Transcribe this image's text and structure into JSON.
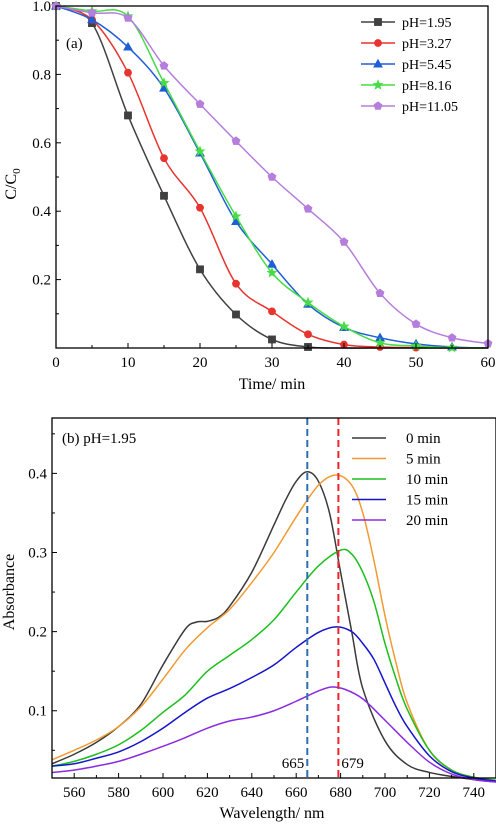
{
  "chart_data": [
    {
      "type": "line",
      "panel_label": "(a)",
      "xlabel": "Time/ min",
      "ylabel_main": "C/C",
      "ylabel_sub": "0",
      "xlim": [
        0,
        60
      ],
      "ylim": [
        0,
        1.0
      ],
      "xticks": [
        0,
        10,
        20,
        30,
        40,
        50,
        60
      ],
      "yticks": [
        0.2,
        0.4,
        0.6,
        0.8,
        1.0
      ],
      "legend_position": "top-right",
      "series": [
        {
          "name": "pH=1.95",
          "color": "#404040",
          "marker": "square",
          "points": [
            [
              0,
              1.0
            ],
            [
              5,
              0.95
            ],
            [
              10,
              0.68
            ],
            [
              15,
              0.445
            ],
            [
              20,
              0.23
            ],
            [
              25,
              0.098
            ],
            [
              30,
              0.025
            ],
            [
              35,
              0.003
            ],
            [
              40,
              0.0
            ],
            [
              45,
              0.0
            ],
            [
              50,
              0.0
            ],
            [
              55,
              0.0
            ],
            [
              60,
              0.0
            ]
          ]
        },
        {
          "name": "pH=3.27",
          "color": "#e8342e",
          "marker": "circle",
          "points": [
            [
              0,
              1.0
            ],
            [
              5,
              0.96
            ],
            [
              10,
              0.805
            ],
            [
              15,
              0.555
            ],
            [
              20,
              0.41
            ],
            [
              25,
              0.188
            ],
            [
              30,
              0.107
            ],
            [
              35,
              0.04
            ],
            [
              40,
              0.01
            ],
            [
              45,
              0.003
            ],
            [
              50,
              0.001
            ],
            [
              55,
              0.0
            ],
            [
              60,
              0.0
            ]
          ]
        },
        {
          "name": "pH=5.45",
          "color": "#1f5fd6",
          "marker": "triangle",
          "points": [
            [
              0,
              1.0
            ],
            [
              5,
              0.96
            ],
            [
              10,
              0.88
            ],
            [
              15,
              0.76
            ],
            [
              20,
              0.57
            ],
            [
              25,
              0.37
            ],
            [
              30,
              0.245
            ],
            [
              35,
              0.128
            ],
            [
              40,
              0.06
            ],
            [
              45,
              0.03
            ],
            [
              50,
              0.012
            ],
            [
              55,
              0.003
            ],
            [
              60,
              0.0
            ]
          ]
        },
        {
          "name": "pH=8.16",
          "color": "#44dd44",
          "marker": "star",
          "points": [
            [
              0,
              1.0
            ],
            [
              5,
              0.985
            ],
            [
              10,
              0.97
            ],
            [
              15,
              0.775
            ],
            [
              20,
              0.575
            ],
            [
              25,
              0.385
            ],
            [
              30,
              0.22
            ],
            [
              35,
              0.133
            ],
            [
              40,
              0.063
            ],
            [
              45,
              0.015
            ],
            [
              50,
              0.006
            ],
            [
              55,
              0.001
            ],
            [
              60,
              0.0
            ]
          ]
        },
        {
          "name": "pH=11.05",
          "color": "#b57edc",
          "marker": "pentagon",
          "points": [
            [
              0,
              1.0
            ],
            [
              5,
              0.98
            ],
            [
              10,
              0.965
            ],
            [
              15,
              0.825
            ],
            [
              20,
              0.713
            ],
            [
              25,
              0.605
            ],
            [
              30,
              0.5
            ],
            [
              35,
              0.407
            ],
            [
              40,
              0.31
            ],
            [
              45,
              0.16
            ],
            [
              50,
              0.07
            ],
            [
              55,
              0.03
            ],
            [
              60,
              0.013
            ]
          ]
        }
      ]
    },
    {
      "type": "line",
      "panel_label": "(b) pH=1.95",
      "xlabel": "Wavelength/ nm",
      "ylabel": "Absorbance",
      "xlim": [
        550,
        750
      ],
      "ylim": [
        0.015,
        0.47
      ],
      "xticks": [
        560,
        580,
        600,
        620,
        640,
        660,
        680,
        700,
        720,
        740
      ],
      "yticks": [
        0.1,
        0.2,
        0.3,
        0.4
      ],
      "legend_position": "top-right",
      "vlines": [
        {
          "x": 665,
          "label": "665",
          "color": "#2f6eb3"
        },
        {
          "x": 679,
          "label": "679",
          "color": "#e8262b"
        }
      ],
      "series": [
        {
          "name": "0 min",
          "color": "#3a3a3a",
          "points": [
            [
              550,
              0.033
            ],
            [
              560,
              0.045
            ],
            [
              570,
              0.06
            ],
            [
              580,
              0.08
            ],
            [
              590,
              0.108
            ],
            [
              600,
              0.158
            ],
            [
              610,
              0.203
            ],
            [
              615,
              0.212
            ],
            [
              620,
              0.213
            ],
            [
              625,
              0.218
            ],
            [
              630,
              0.232
            ],
            [
              640,
              0.275
            ],
            [
              650,
              0.335
            ],
            [
              655,
              0.365
            ],
            [
              660,
              0.39
            ],
            [
              665,
              0.402
            ],
            [
              670,
              0.39
            ],
            [
              675,
              0.35
            ],
            [
              680,
              0.275
            ],
            [
              685,
              0.2
            ],
            [
              690,
              0.128
            ],
            [
              700,
              0.062
            ],
            [
              710,
              0.032
            ],
            [
              720,
              0.022
            ],
            [
              730,
              0.017
            ],
            [
              740,
              0.013
            ],
            [
              750,
              0.01
            ]
          ]
        },
        {
          "name": "5 min",
          "color": "#f29a30",
          "points": [
            [
              550,
              0.038
            ],
            [
              560,
              0.05
            ],
            [
              570,
              0.063
            ],
            [
              580,
              0.08
            ],
            [
              590,
              0.105
            ],
            [
              600,
              0.14
            ],
            [
              610,
              0.177
            ],
            [
              620,
              0.205
            ],
            [
              630,
              0.228
            ],
            [
              640,
              0.262
            ],
            [
              650,
              0.3
            ],
            [
              660,
              0.345
            ],
            [
              670,
              0.385
            ],
            [
              678,
              0.398
            ],
            [
              685,
              0.385
            ],
            [
              690,
              0.35
            ],
            [
              695,
              0.29
            ],
            [
              700,
              0.22
            ],
            [
              705,
              0.16
            ],
            [
              710,
              0.11
            ],
            [
              720,
              0.05
            ],
            [
              730,
              0.025
            ],
            [
              740,
              0.016
            ],
            [
              750,
              0.012
            ]
          ]
        },
        {
          "name": "10 min",
          "color": "#1cbf1c",
          "points": [
            [
              550,
              0.03
            ],
            [
              560,
              0.036
            ],
            [
              570,
              0.045
            ],
            [
              580,
              0.057
            ],
            [
              590,
              0.075
            ],
            [
              600,
              0.098
            ],
            [
              610,
              0.12
            ],
            [
              620,
              0.15
            ],
            [
              630,
              0.17
            ],
            [
              640,
              0.19
            ],
            [
              650,
              0.215
            ],
            [
              660,
              0.25
            ],
            [
              670,
              0.283
            ],
            [
              680,
              0.303
            ],
            [
              685,
              0.298
            ],
            [
              690,
              0.275
            ],
            [
              695,
              0.238
            ],
            [
              700,
              0.185
            ],
            [
              705,
              0.14
            ],
            [
              710,
              0.102
            ],
            [
              720,
              0.05
            ],
            [
              730,
              0.025
            ],
            [
              740,
              0.016
            ],
            [
              750,
              0.012
            ]
          ]
        },
        {
          "name": "15 min",
          "color": "#1414cc",
          "points": [
            [
              550,
              0.03
            ],
            [
              560,
              0.033
            ],
            [
              570,
              0.04
            ],
            [
              580,
              0.048
            ],
            [
              590,
              0.061
            ],
            [
              600,
              0.078
            ],
            [
              610,
              0.098
            ],
            [
              620,
              0.116
            ],
            [
              630,
              0.128
            ],
            [
              640,
              0.142
            ],
            [
              650,
              0.158
            ],
            [
              660,
              0.18
            ],
            [
              670,
              0.199
            ],
            [
              678,
              0.206
            ],
            [
              685,
              0.2
            ],
            [
              690,
              0.185
            ],
            [
              695,
              0.165
            ],
            [
              700,
              0.135
            ],
            [
              705,
              0.105
            ],
            [
              710,
              0.08
            ],
            [
              720,
              0.043
            ],
            [
              730,
              0.023
            ],
            [
              740,
              0.015
            ],
            [
              750,
              0.011
            ]
          ]
        },
        {
          "name": "20 min",
          "color": "#8a2be2",
          "points": [
            [
              550,
              0.022
            ],
            [
              560,
              0.025
            ],
            [
              570,
              0.03
            ],
            [
              580,
              0.036
            ],
            [
              590,
              0.045
            ],
            [
              600,
              0.055
            ],
            [
              610,
              0.066
            ],
            [
              620,
              0.078
            ],
            [
              630,
              0.087
            ],
            [
              640,
              0.092
            ],
            [
              650,
              0.1
            ],
            [
              660,
              0.112
            ],
            [
              670,
              0.125
            ],
            [
              676,
              0.13
            ],
            [
              682,
              0.127
            ],
            [
              690,
              0.115
            ],
            [
              700,
              0.088
            ],
            [
              710,
              0.06
            ],
            [
              720,
              0.035
            ],
            [
              730,
              0.02
            ],
            [
              740,
              0.013
            ],
            [
              750,
              0.01
            ]
          ]
        }
      ]
    }
  ]
}
